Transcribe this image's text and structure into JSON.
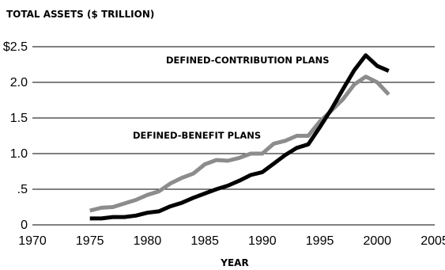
{
  "chart_data": {
    "type": "line",
    "title": "TOTAL ASSETS ($ TRILLION)",
    "xlabel": "YEAR",
    "ylabel": "",
    "xlim": [
      1970,
      2005
    ],
    "ylim": [
      0,
      2.5
    ],
    "x_ticks": [
      {
        "value": 1970,
        "label": "1970"
      },
      {
        "value": 1975,
        "label": "1975"
      },
      {
        "value": 1980,
        "label": "1980"
      },
      {
        "value": 1985,
        "label": "1985"
      },
      {
        "value": 1990,
        "label": "1990"
      },
      {
        "value": 1995,
        "label": "1995"
      },
      {
        "value": 2000,
        "label": "2000"
      },
      {
        "value": 2005,
        "label": "2005"
      }
    ],
    "y_ticks": [
      {
        "value": 0,
        "label": "0"
      },
      {
        "value": 0.5,
        "label": ".5"
      },
      {
        "value": 1.0,
        "label": "1.0"
      },
      {
        "value": 1.5,
        "label": "1.5"
      },
      {
        "value": 2.0,
        "label": "2.0"
      },
      {
        "value": 2.5,
        "label": "$2.5"
      }
    ],
    "grid": true,
    "x": [
      1975,
      1976,
      1977,
      1978,
      1979,
      1980,
      1981,
      1982,
      1983,
      1984,
      1985,
      1986,
      1987,
      1988,
      1989,
      1990,
      1991,
      1992,
      1993,
      1994,
      1995,
      1996,
      1997,
      1998,
      1999,
      2000,
      2001
    ],
    "series": [
      {
        "name": "DEFINED-CONTRIBUTION PLANS",
        "color": "#000000",
        "values": [
          0.09,
          0.09,
          0.11,
          0.11,
          0.13,
          0.17,
          0.19,
          0.26,
          0.31,
          0.38,
          0.44,
          0.5,
          0.55,
          0.62,
          0.7,
          0.74,
          0.86,
          0.98,
          1.08,
          1.13,
          1.37,
          1.62,
          1.9,
          2.17,
          2.38,
          2.23,
          2.16
        ]
      },
      {
        "name": "DEFINED-BENEFIT PLANS",
        "color": "#8c8c8c",
        "values": [
          0.2,
          0.24,
          0.25,
          0.3,
          0.35,
          0.42,
          0.47,
          0.58,
          0.66,
          0.72,
          0.85,
          0.91,
          0.9,
          0.94,
          1.0,
          1.0,
          1.14,
          1.18,
          1.25,
          1.25,
          1.45,
          1.6,
          1.76,
          1.97,
          2.08,
          2.0,
          1.83
        ]
      }
    ]
  }
}
